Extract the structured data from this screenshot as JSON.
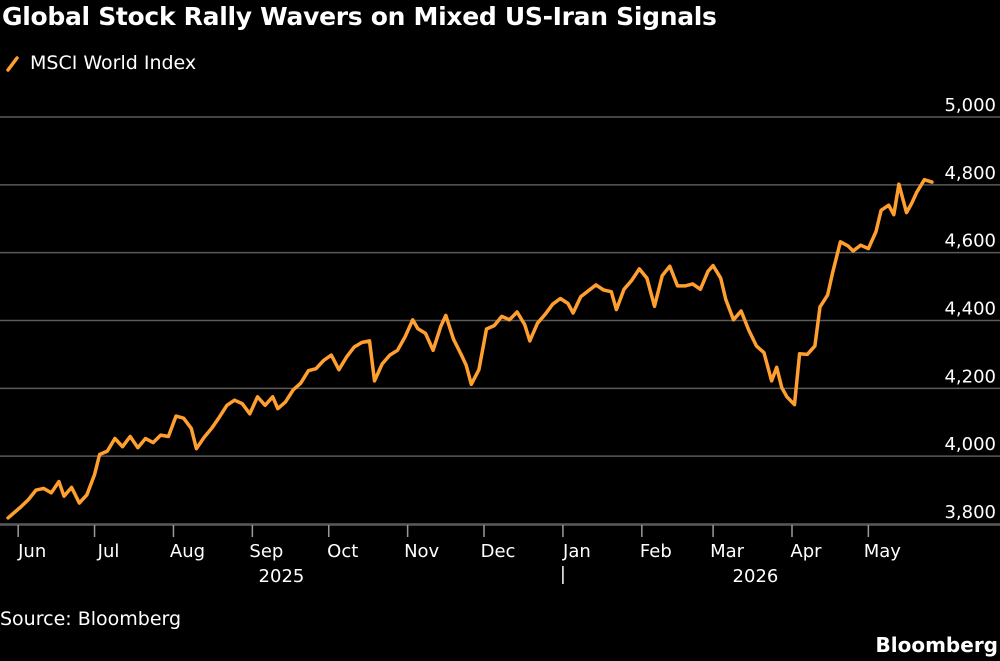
{
  "header": {
    "title": "Global Stock Rally Wavers on Mixed US-Iran Signals"
  },
  "footer": {
    "source": "Source: Bloomberg",
    "brand": "Bloomberg"
  },
  "colors": {
    "background": "#000000",
    "line": "#FF9F2F",
    "grid": "#5A5A5A",
    "text": "#FFFFFF"
  },
  "chart_data": {
    "type": "line",
    "title": "Global Stock Rally Wavers on Mixed US-Iran Signals",
    "xlabel": "",
    "ylabel": "",
    "legend_position": "top-left",
    "grid": true,
    "y_axis_side": "right",
    "ylim": [
      3780,
      5000
    ],
    "y_ticks": [
      3800,
      4000,
      4200,
      4400,
      4600,
      4800,
      5000
    ],
    "y_tick_labels": [
      "3,800",
      "4,000",
      "4,200",
      "4,400",
      "4,600",
      "4,800",
      "5,000"
    ],
    "x_ticks": [
      "Jun",
      "Jul",
      "Aug",
      "Sep",
      "Oct",
      "Nov",
      "Dec",
      "Jan",
      "Feb",
      "Mar",
      "Apr",
      "May"
    ],
    "x_year_labels": [
      "2025",
      "2026"
    ],
    "x_range": [
      "2025-05-28",
      "2026-05-26"
    ],
    "series": [
      {
        "name": "MSCI World Index",
        "points": [
          [
            "2025-05-28",
            3818
          ],
          [
            "2025-06-02",
            3850
          ],
          [
            "2025-06-05",
            3872
          ],
          [
            "2025-06-08",
            3900
          ],
          [
            "2025-06-11",
            3905
          ],
          [
            "2025-06-14",
            3892
          ],
          [
            "2025-06-17",
            3925
          ],
          [
            "2025-06-19",
            3882
          ],
          [
            "2025-06-22",
            3908
          ],
          [
            "2025-06-25",
            3862
          ],
          [
            "2025-06-28",
            3886
          ],
          [
            "2025-07-01",
            3945
          ],
          [
            "2025-07-03",
            4005
          ],
          [
            "2025-07-06",
            4015
          ],
          [
            "2025-07-09",
            4052
          ],
          [
            "2025-07-12",
            4028
          ],
          [
            "2025-07-15",
            4058
          ],
          [
            "2025-07-18",
            4025
          ],
          [
            "2025-07-21",
            4052
          ],
          [
            "2025-07-24",
            4040
          ],
          [
            "2025-07-27",
            4062
          ],
          [
            "2025-07-30",
            4058
          ],
          [
            "2025-08-02",
            4118
          ],
          [
            "2025-08-05",
            4112
          ],
          [
            "2025-08-08",
            4082
          ],
          [
            "2025-08-10",
            4022
          ],
          [
            "2025-08-13",
            4055
          ],
          [
            "2025-08-16",
            4082
          ],
          [
            "2025-08-19",
            4115
          ],
          [
            "2025-08-22",
            4150
          ],
          [
            "2025-08-25",
            4165
          ],
          [
            "2025-08-28",
            4155
          ],
          [
            "2025-08-31",
            4125
          ],
          [
            "2025-09-03",
            4175
          ],
          [
            "2025-09-06",
            4150
          ],
          [
            "2025-09-09",
            4175
          ],
          [
            "2025-09-11",
            4140
          ],
          [
            "2025-09-14",
            4160
          ],
          [
            "2025-09-17",
            4195
          ],
          [
            "2025-09-20",
            4215
          ],
          [
            "2025-09-23",
            4252
          ],
          [
            "2025-09-26",
            4258
          ],
          [
            "2025-09-29",
            4282
          ],
          [
            "2025-10-02",
            4298
          ],
          [
            "2025-10-05",
            4255
          ],
          [
            "2025-10-08",
            4292
          ],
          [
            "2025-10-11",
            4322
          ],
          [
            "2025-10-14",
            4335
          ],
          [
            "2025-10-17",
            4340
          ],
          [
            "2025-10-19",
            4222
          ],
          [
            "2025-10-22",
            4272
          ],
          [
            "2025-10-25",
            4298
          ],
          [
            "2025-10-28",
            4312
          ],
          [
            "2025-10-31",
            4352
          ],
          [
            "2025-11-03",
            4402
          ],
          [
            "2025-11-05",
            4376
          ],
          [
            "2025-11-08",
            4362
          ],
          [
            "2025-11-11",
            4312
          ],
          [
            "2025-11-14",
            4382
          ],
          [
            "2025-11-16",
            4415
          ],
          [
            "2025-11-19",
            4345
          ],
          [
            "2025-11-22",
            4300
          ],
          [
            "2025-11-24",
            4268
          ],
          [
            "2025-11-26",
            4212
          ],
          [
            "2025-11-29",
            4255
          ],
          [
            "2025-12-02",
            4375
          ],
          [
            "2025-12-05",
            4385
          ],
          [
            "2025-12-08",
            4412
          ],
          [
            "2025-12-11",
            4402
          ],
          [
            "2025-12-14",
            4425
          ],
          [
            "2025-12-17",
            4388
          ],
          [
            "2025-12-19",
            4340
          ],
          [
            "2025-12-22",
            4392
          ],
          [
            "2025-12-25",
            4418
          ],
          [
            "2025-12-28",
            4448
          ],
          [
            "2025-12-31",
            4465
          ],
          [
            "2026-01-03",
            4450
          ],
          [
            "2026-01-05",
            4422
          ],
          [
            "2026-01-08",
            4470
          ],
          [
            "2026-01-11",
            4488
          ],
          [
            "2026-01-14",
            4505
          ],
          [
            "2026-01-17",
            4490
          ],
          [
            "2026-01-20",
            4485
          ],
          [
            "2026-01-22",
            4432
          ],
          [
            "2026-01-25",
            4492
          ],
          [
            "2026-01-28",
            4518
          ],
          [
            "2026-01-31",
            4552
          ],
          [
            "2026-02-03",
            4525
          ],
          [
            "2026-02-06",
            4442
          ],
          [
            "2026-02-09",
            4532
          ],
          [
            "2026-02-12",
            4560
          ],
          [
            "2026-02-15",
            4502
          ],
          [
            "2026-02-18",
            4502
          ],
          [
            "2026-02-21",
            4508
          ],
          [
            "2026-02-24",
            4492
          ],
          [
            "2026-02-27",
            4545
          ],
          [
            "2026-03-01",
            4562
          ],
          [
            "2026-03-04",
            4525
          ],
          [
            "2026-03-06",
            4462
          ],
          [
            "2026-03-09",
            4402
          ],
          [
            "2026-03-12",
            4428
          ],
          [
            "2026-03-15",
            4372
          ],
          [
            "2026-03-18",
            4325
          ],
          [
            "2026-03-21",
            4305
          ],
          [
            "2026-03-24",
            4222
          ],
          [
            "2026-03-26",
            4262
          ],
          [
            "2026-03-28",
            4202
          ],
          [
            "2026-03-30",
            4175
          ],
          [
            "2026-04-02",
            4152
          ],
          [
            "2026-04-04",
            4302
          ],
          [
            "2026-04-07",
            4300
          ],
          [
            "2026-04-10",
            4325
          ],
          [
            "2026-04-12",
            4440
          ],
          [
            "2026-04-15",
            4475
          ],
          [
            "2026-04-17",
            4542
          ],
          [
            "2026-04-20",
            4632
          ],
          [
            "2026-04-23",
            4620
          ],
          [
            "2026-04-25",
            4605
          ],
          [
            "2026-04-28",
            4622
          ],
          [
            "2026-05-01",
            4612
          ],
          [
            "2026-05-04",
            4662
          ],
          [
            "2026-05-06",
            4725
          ],
          [
            "2026-05-09",
            4740
          ],
          [
            "2026-05-11",
            4712
          ],
          [
            "2026-05-13",
            4802
          ],
          [
            "2026-05-16",
            4718
          ],
          [
            "2026-05-18",
            4745
          ],
          [
            "2026-05-20",
            4778
          ],
          [
            "2026-05-23",
            4815
          ],
          [
            "2026-05-26",
            4808
          ]
        ]
      }
    ]
  }
}
